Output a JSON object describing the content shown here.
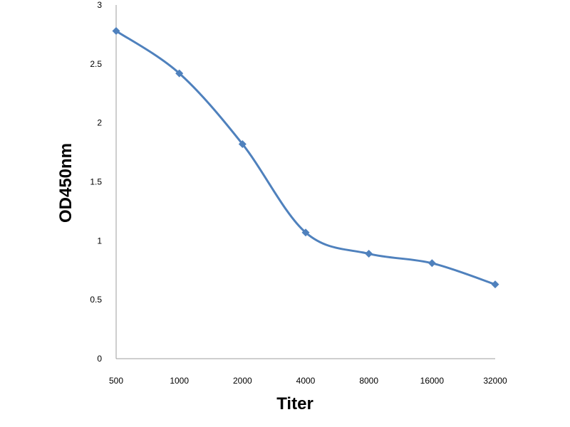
{
  "chart_data": {
    "type": "line",
    "title": "",
    "xlabel": "Titer",
    "ylabel": "OD450nm",
    "categories": [
      "500",
      "1000",
      "2000",
      "4000",
      "8000",
      "16000",
      "32000"
    ],
    "series": [
      {
        "values": [
          2.78,
          2.42,
          1.82,
          1.07,
          0.89,
          0.81,
          0.63
        ],
        "color": "#4f81bd",
        "marker": "diamond"
      }
    ],
    "ylim": [
      0,
      3
    ],
    "yticks": [
      "0",
      "0.5",
      "1",
      "1.5",
      "2",
      "2.5",
      "3"
    ],
    "grid": false,
    "legend": "none"
  }
}
